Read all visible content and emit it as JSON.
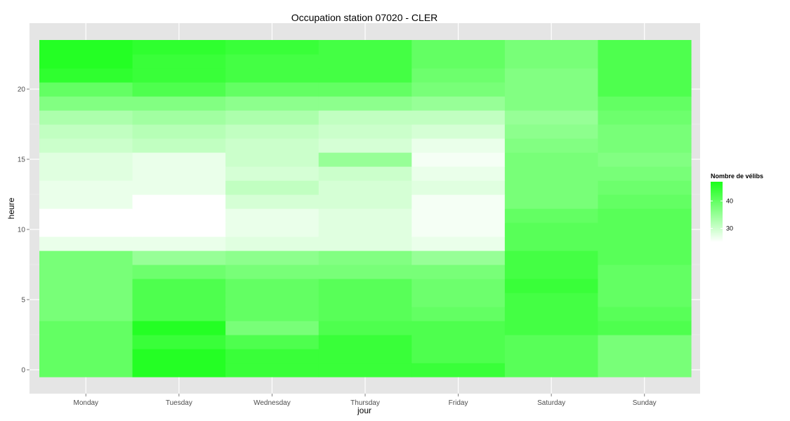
{
  "chart_data": {
    "type": "heatmap",
    "title": "Occupation station 07020 - CLER",
    "xlabel": "jour",
    "ylabel": "heure",
    "days": [
      "Monday",
      "Tuesday",
      "Wednesday",
      "Thursday",
      "Friday",
      "Saturday",
      "Sunday"
    ],
    "hours": [
      0,
      1,
      2,
      3,
      4,
      5,
      6,
      7,
      8,
      9,
      10,
      11,
      12,
      13,
      14,
      15,
      16,
      17,
      18,
      19,
      20,
      21,
      22,
      23
    ],
    "y_ticks": [
      0,
      5,
      10,
      15,
      20
    ],
    "ylim": [
      -0.5,
      23.5
    ],
    "grid": true,
    "legend": {
      "title": "Nombre de vélibs",
      "position": "right",
      "ticks": [
        30,
        40
      ],
      "range": [
        25,
        47
      ],
      "low_color": "#ffffff",
      "high_color": "#1aff1a"
    },
    "values": [
      [
        40,
        46,
        44,
        44,
        44,
        41,
        38
      ],
      [
        40,
        46,
        44,
        44,
        42,
        41,
        38
      ],
      [
        40,
        44,
        42,
        44,
        42,
        41,
        38
      ],
      [
        40,
        46,
        38,
        42,
        42,
        43,
        42
      ],
      [
        38,
        42,
        40,
        41,
        40,
        43,
        41
      ],
      [
        38,
        42,
        40,
        41,
        39,
        43,
        40
      ],
      [
        38,
        42,
        40,
        41,
        39,
        44,
        40
      ],
      [
        38,
        39,
        38,
        38,
        38,
        43,
        40
      ],
      [
        38,
        35,
        36,
        37,
        35,
        43,
        41
      ],
      [
        27,
        27,
        28,
        28,
        27,
        41,
        41
      ],
      [
        25,
        24,
        27,
        28,
        26,
        41,
        41
      ],
      [
        25,
        24,
        27,
        28,
        26,
        40,
        41
      ],
      [
        27,
        25,
        29,
        29,
        26,
        38,
        40
      ],
      [
        27,
        27,
        31,
        29,
        28,
        38,
        39
      ],
      [
        28,
        27,
        29,
        30,
        27,
        38,
        38
      ],
      [
        28,
        27,
        30,
        35,
        26,
        38,
        37
      ],
      [
        30,
        31,
        30,
        29,
        27,
        37,
        38
      ],
      [
        31,
        32,
        31,
        30,
        29,
        36,
        38
      ],
      [
        33,
        34,
        33,
        31,
        31,
        35,
        39
      ],
      [
        37,
        37,
        36,
        36,
        35,
        37,
        40
      ],
      [
        40,
        42,
        40,
        40,
        38,
        37,
        42
      ],
      [
        45,
        44,
        43,
        43,
        39,
        37,
        42
      ],
      [
        46,
        44,
        43,
        43,
        40,
        38,
        42
      ],
      [
        46,
        45,
        44,
        43,
        40,
        38,
        42
      ]
    ]
  }
}
